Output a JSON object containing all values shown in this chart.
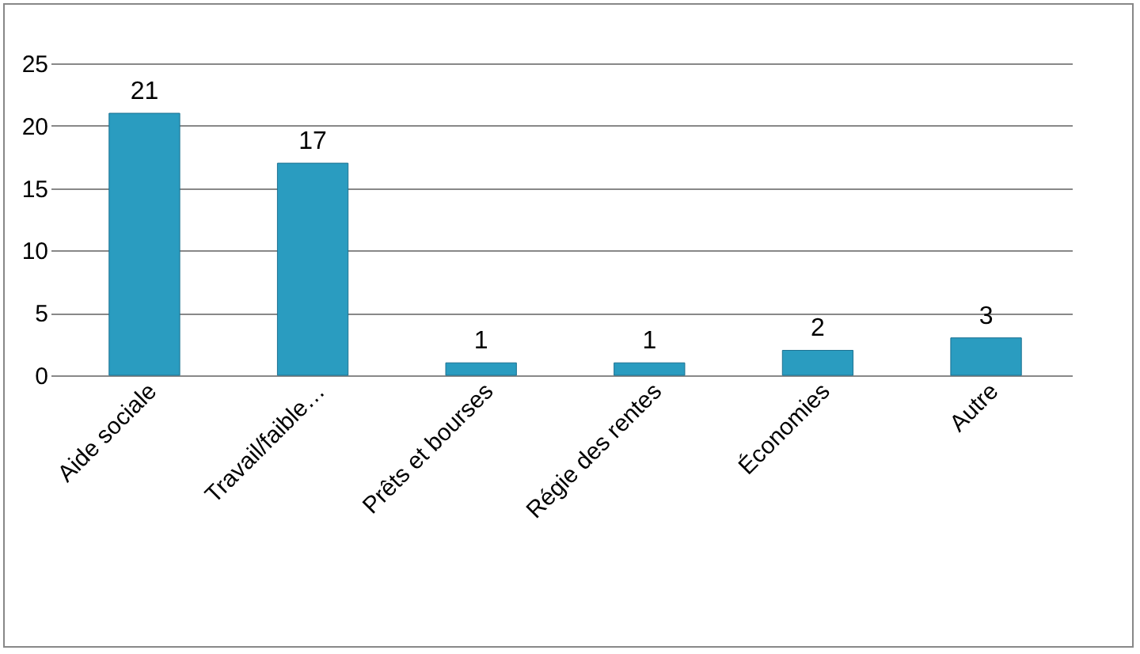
{
  "chart_data": {
    "type": "bar",
    "categories": [
      "Aide sociale",
      "Travail/faible…",
      "Prêts et bourses",
      "Régie des rentes",
      "Économies",
      "Autre"
    ],
    "values": [
      21,
      17,
      1,
      1,
      2,
      3
    ],
    "color": "#2a9cc0",
    "ylim": [
      0,
      25
    ],
    "yticks": [
      0,
      5,
      10,
      15,
      20,
      25
    ],
    "grid": "y",
    "data_labels": true
  }
}
